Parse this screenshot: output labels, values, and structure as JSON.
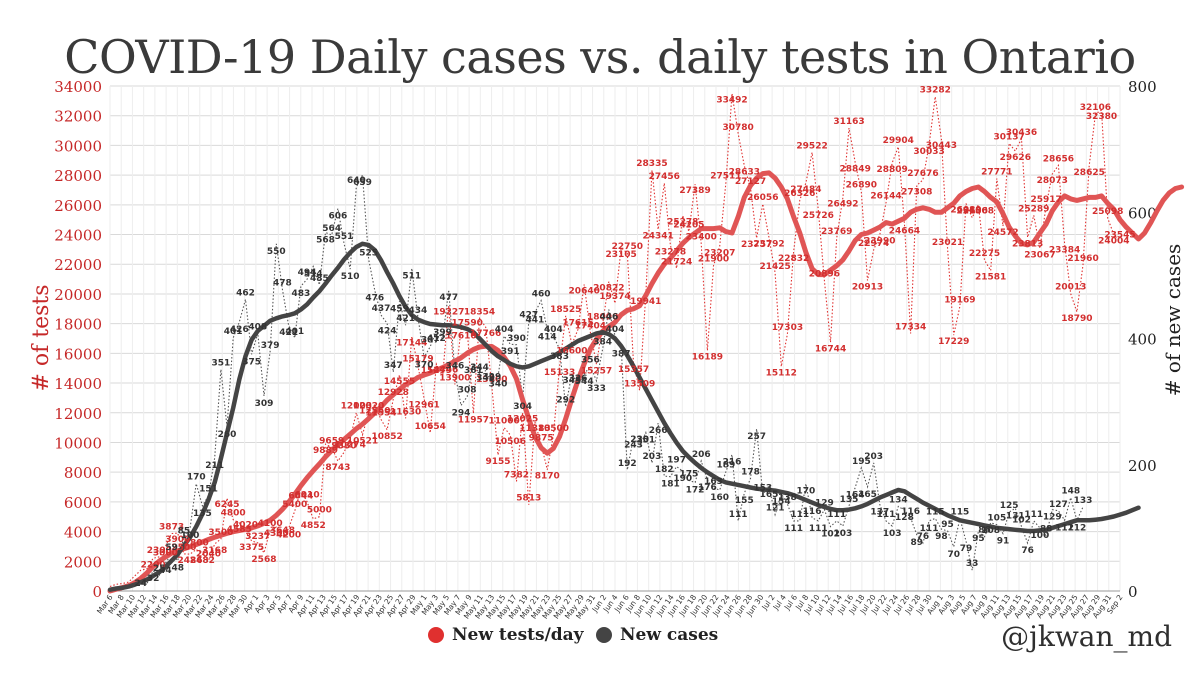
{
  "chart_data": {
    "type": "line",
    "title": "COVID-19 Daily cases vs. daily tests in Ontario",
    "ylabel_left": "# of tests",
    "ylabel_right": "# of new cases",
    "ylim_left": [
      0,
      34000
    ],
    "ylim_right": [
      0,
      800
    ],
    "yticks_left": [
      0,
      2000,
      4000,
      6000,
      8000,
      10000,
      12000,
      14000,
      16000,
      18000,
      20000,
      22000,
      24000,
      26000,
      28000,
      30000,
      32000,
      34000
    ],
    "yticks_right": [
      0,
      200,
      400,
      600,
      800
    ],
    "x_ticks": [
      "Mar 6",
      "Mar 8",
      "Mar 10",
      "Mar 12",
      "Mar 14",
      "Mar 16",
      "Mar 18",
      "Mar 20",
      "Mar 22",
      "Mar 24",
      "Mar 26",
      "Mar 28",
      "Mar 30",
      "Apr 1",
      "Apr 3",
      "Apr 5",
      "Apr 7",
      "Apr 9",
      "Apr 11",
      "Apr 13",
      "Apr 15",
      "Apr 17",
      "Apr 19",
      "Apr 21",
      "Apr 23",
      "Apr 25",
      "Apr 27",
      "Apr 29",
      "May 1",
      "May 3",
      "May 5",
      "May 7",
      "May 9",
      "May 11",
      "May 13",
      "May 15",
      "May 17",
      "May 19",
      "May 21",
      "May 23",
      "May 25",
      "May 27",
      "May 29",
      "May 31",
      "Jun 2",
      "Jun 4",
      "Jun 6",
      "Jun 8",
      "Jun 10",
      "Jun 12",
      "Jun 14",
      "Jun 16",
      "Jun 18",
      "Jun 20",
      "Jun 22",
      "Jun 24",
      "Jun 26",
      "Jun 28",
      "Jun 30",
      "Jul 2",
      "Jul 4",
      "Jul 6",
      "Jul 8",
      "Jul 10",
      "Jul 12",
      "Jul 14",
      "Jul 16",
      "Jul 18",
      "Jul 20",
      "Jul 22",
      "Jul 24",
      "Jul 26",
      "Jul 28",
      "Jul 30",
      "Aug 1",
      "Aug 3",
      "Aug 5",
      "Aug 7",
      "Aug 9",
      "Aug 11",
      "Aug 13",
      "Aug 15",
      "Aug 17",
      "Aug 19",
      "Aug 21",
      "Aug 23",
      "Aug 25",
      "Aug 27",
      "Aug 29",
      "Aug 31",
      "Sep 2"
    ],
    "series": [
      {
        "name": "New tests/day",
        "axis": "left",
        "color": "#e0302f",
        "smooth_color": "#e05555",
        "values": [
          300,
          450,
          500,
          600,
          1000,
          1400,
          1500,
          2200,
          2300,
          3000,
          3873,
          3900,
          2500,
          2486,
          2800,
          2482,
          2040,
          3168,
          3500,
          6245,
          4800,
          4585,
          4020,
          3375,
          3237,
          2568,
          4100,
          4300,
          3648,
          4200,
          5400,
          6844,
          6010,
          4852,
          5000,
          9889,
          9659,
          8743,
          9330,
          10274,
          12003,
          10521,
          12020,
          12550,
          11554,
          10852,
          12928,
          14555,
          11630,
          17144,
          15179,
          12961,
          10654,
          15279,
          14446,
          19227,
          13900,
          17610,
          17590,
          11957,
          18354,
          17766,
          13800,
          9155,
          11000,
          10506,
          7382,
          12025,
          5813,
          11383,
          9875,
          8170,
          10500,
          15133,
          18525,
          16600,
          17615,
          20640,
          17404,
          15257,
          18000,
          20822,
          19374,
          23105,
          22750,
          15357,
          13509,
          19941,
          28335,
          24341,
          27456,
          23278,
          21724,
          25278,
          24205,
          27389,
          23400,
          16189,
          21900,
          23207,
          27511,
          33492,
          30780,
          28633,
          27127,
          23757,
          26056,
          23792,
          21425,
          15112,
          17303,
          22832,
          26326,
          27484,
          29522,
          25726,
          20896,
          16744,
          23769,
          26492,
          31163,
          28849,
          26890,
          20913,
          22974,
          23990,
          26144,
          28809,
          29904,
          24664,
          17334,
          27308,
          27676,
          30033,
          33282,
          30443,
          23021,
          17229,
          19169,
          26089,
          25136,
          26008,
          22275,
          21581,
          27771,
          24572,
          30137,
          29626,
          30436,
          23813,
          25289,
          23067,
          25917,
          28073,
          28656,
          23384,
          20013,
          18790,
          21960,
          28625,
          32106,
          32380,
          25098,
          24004,
          23545
        ],
        "smooth": [
          0,
          120,
          230,
          360,
          560,
          850,
          1220,
          1650,
          2020,
          2290,
          2550,
          2700,
          2850,
          2980,
          3130,
          3300,
          3470,
          3620,
          3760,
          3880,
          3990,
          4070,
          4150,
          4250,
          4380,
          4560,
          4760,
          5100,
          5500,
          5970,
          6520,
          7090,
          7620,
          8100,
          8550,
          9030,
          9460,
          9850,
          10200,
          10560,
          10930,
          11240,
          11610,
          12000,
          12400,
          12850,
          13220,
          13580,
          13900,
          14100,
          14380,
          14540,
          14680,
          14860,
          15040,
          15240,
          15470,
          15700,
          16010,
          16260,
          16430,
          16480,
          16460,
          16200,
          15740,
          15140,
          14280,
          12880,
          11600,
          10400,
          9650,
          9280,
          9600,
          10400,
          11600,
          12950,
          14200,
          15300,
          16300,
          16950,
          17500,
          17800,
          18100,
          18600,
          18900,
          19000,
          19200,
          19900,
          20700,
          21400,
          22000,
          22400,
          22900,
          23400,
          23800,
          24100,
          24400,
          24400,
          24400,
          24450,
          24200,
          24100,
          25200,
          26500,
          27300,
          27800,
          28100,
          28150,
          27800,
          27200,
          26400,
          25200,
          24100,
          22800,
          21700,
          21300,
          21300,
          21600,
          21900,
          22300,
          22900,
          23600,
          24000,
          24100,
          24300,
          24500,
          24800,
          24700,
          24900,
          25100,
          25500,
          25700,
          25800,
          25700,
          25500,
          25500,
          25800,
          26100,
          26600,
          26900,
          27100,
          27200,
          26900,
          26500,
          26200,
          25400,
          24500,
          23900,
          23400,
          23300,
          23500,
          24100,
          24700,
          25600,
          26200,
          26600,
          26400,
          26300,
          26400,
          26500,
          26500,
          26600,
          26100,
          25700,
          25000,
          24500,
          24100,
          23700,
          24100,
          24800,
          25600,
          26300,
          26800,
          27100,
          27200
        ]
      },
      {
        "name": "New cases",
        "axis": "right",
        "color": "#444444",
        "values": [
          3,
          5,
          4,
          8,
          12,
          24,
          12,
          32,
          25,
          44,
          59,
          48,
          85,
          100,
          170,
          135,
          151,
          211,
          351,
          260,
          401,
          426,
          462,
          375,
          408,
          309,
          379,
          550,
          478,
          421,
          401,
          483,
          494,
          514,
          485,
          568,
          564,
          606,
          551,
          510,
          640,
          659,
          525,
          476,
          437,
          424,
          347,
          459,
          421,
          511,
          434,
          370,
          387,
          412,
          399,
          477,
          346,
          294,
          308,
          361,
          344,
          349,
          329,
          340,
          404,
          391,
          390,
          304,
          427,
          441,
          460,
          414,
          404,
          383,
          292,
          345,
          326,
          344,
          356,
          333,
          384,
          446,
          404,
          387,
          192,
          243,
          230,
          251,
          203,
          266,
          182,
          181,
          197,
          190,
          175,
          172,
          206,
          176,
          163,
          160,
          189,
          216,
          111,
          155,
          178,
          257,
          153,
          165,
          121,
          154,
          138,
          111,
          111,
          170,
          116,
          111,
          129,
          102,
          111,
          103,
          135,
          164,
          195,
          165,
          203,
          137,
          111,
          103,
          134,
          128,
          116,
          89,
          76,
          111,
          115,
          98,
          95,
          70,
          115,
          79,
          33,
          95,
          86,
          108,
          105,
          91,
          125,
          131,
          102,
          76,
          111,
          100,
          88,
          129,
          127,
          112,
          148,
          112,
          133
        ],
        "smooth": [
          2,
          4,
          5,
          7,
          10,
          14,
          18,
          24,
          30,
          38,
          48,
          58,
          72,
          85,
          102,
          122,
          145,
          172,
          210,
          250,
          290,
          335,
          372,
          398,
          412,
          420,
          428,
          432,
          435,
          437,
          440,
          446,
          454,
          465,
          475,
          487,
          500,
          512,
          525,
          536,
          545,
          550,
          548,
          540,
          524,
          505,
          487,
          467,
          450,
          437,
          430,
          426,
          423,
          422,
          421,
          421,
          420,
          418,
          415,
          410,
          400,
          390,
          380,
          372,
          366,
          360,
          356,
          354,
          356,
          360,
          364,
          368,
          372,
          378,
          384,
          390,
          396,
          400,
          404,
          408,
          410,
          407,
          400,
          388,
          373,
          356,
          338,
          320,
          302,
          284,
          266,
          250,
          235,
          222,
          212,
          203,
          195,
          188,
          182,
          176,
          172,
          170,
          168,
          166,
          164,
          162,
          161,
          160,
          159,
          157,
          155,
          152,
          148,
          144,
          140,
          136,
          133,
          130,
          128,
          128,
          129,
          131,
          134,
          138,
          143,
          148,
          152,
          156,
          160,
          158,
          152,
          146,
          140,
          135,
          130,
          125,
          120,
          116,
          112,
          110,
          108,
          106,
          104,
          102,
          100,
          99,
          98,
          97,
          96,
          95,
          95,
          96,
          97,
          100,
          103,
          106,
          109,
          112,
          112,
          112,
          113,
          114,
          116,
          118,
          121,
          124,
          128,
          132
        ]
      }
    ],
    "legend": [
      "New tests/day",
      "New cases"
    ],
    "annotation": "@jkwan_md"
  },
  "colors": {
    "tests": "#e0302f",
    "tests_smooth": "#e05555",
    "cases": "#444444",
    "left_axis_text": "#c62828",
    "right_axis_text": "#222222",
    "grid": "#d9d9d9"
  }
}
